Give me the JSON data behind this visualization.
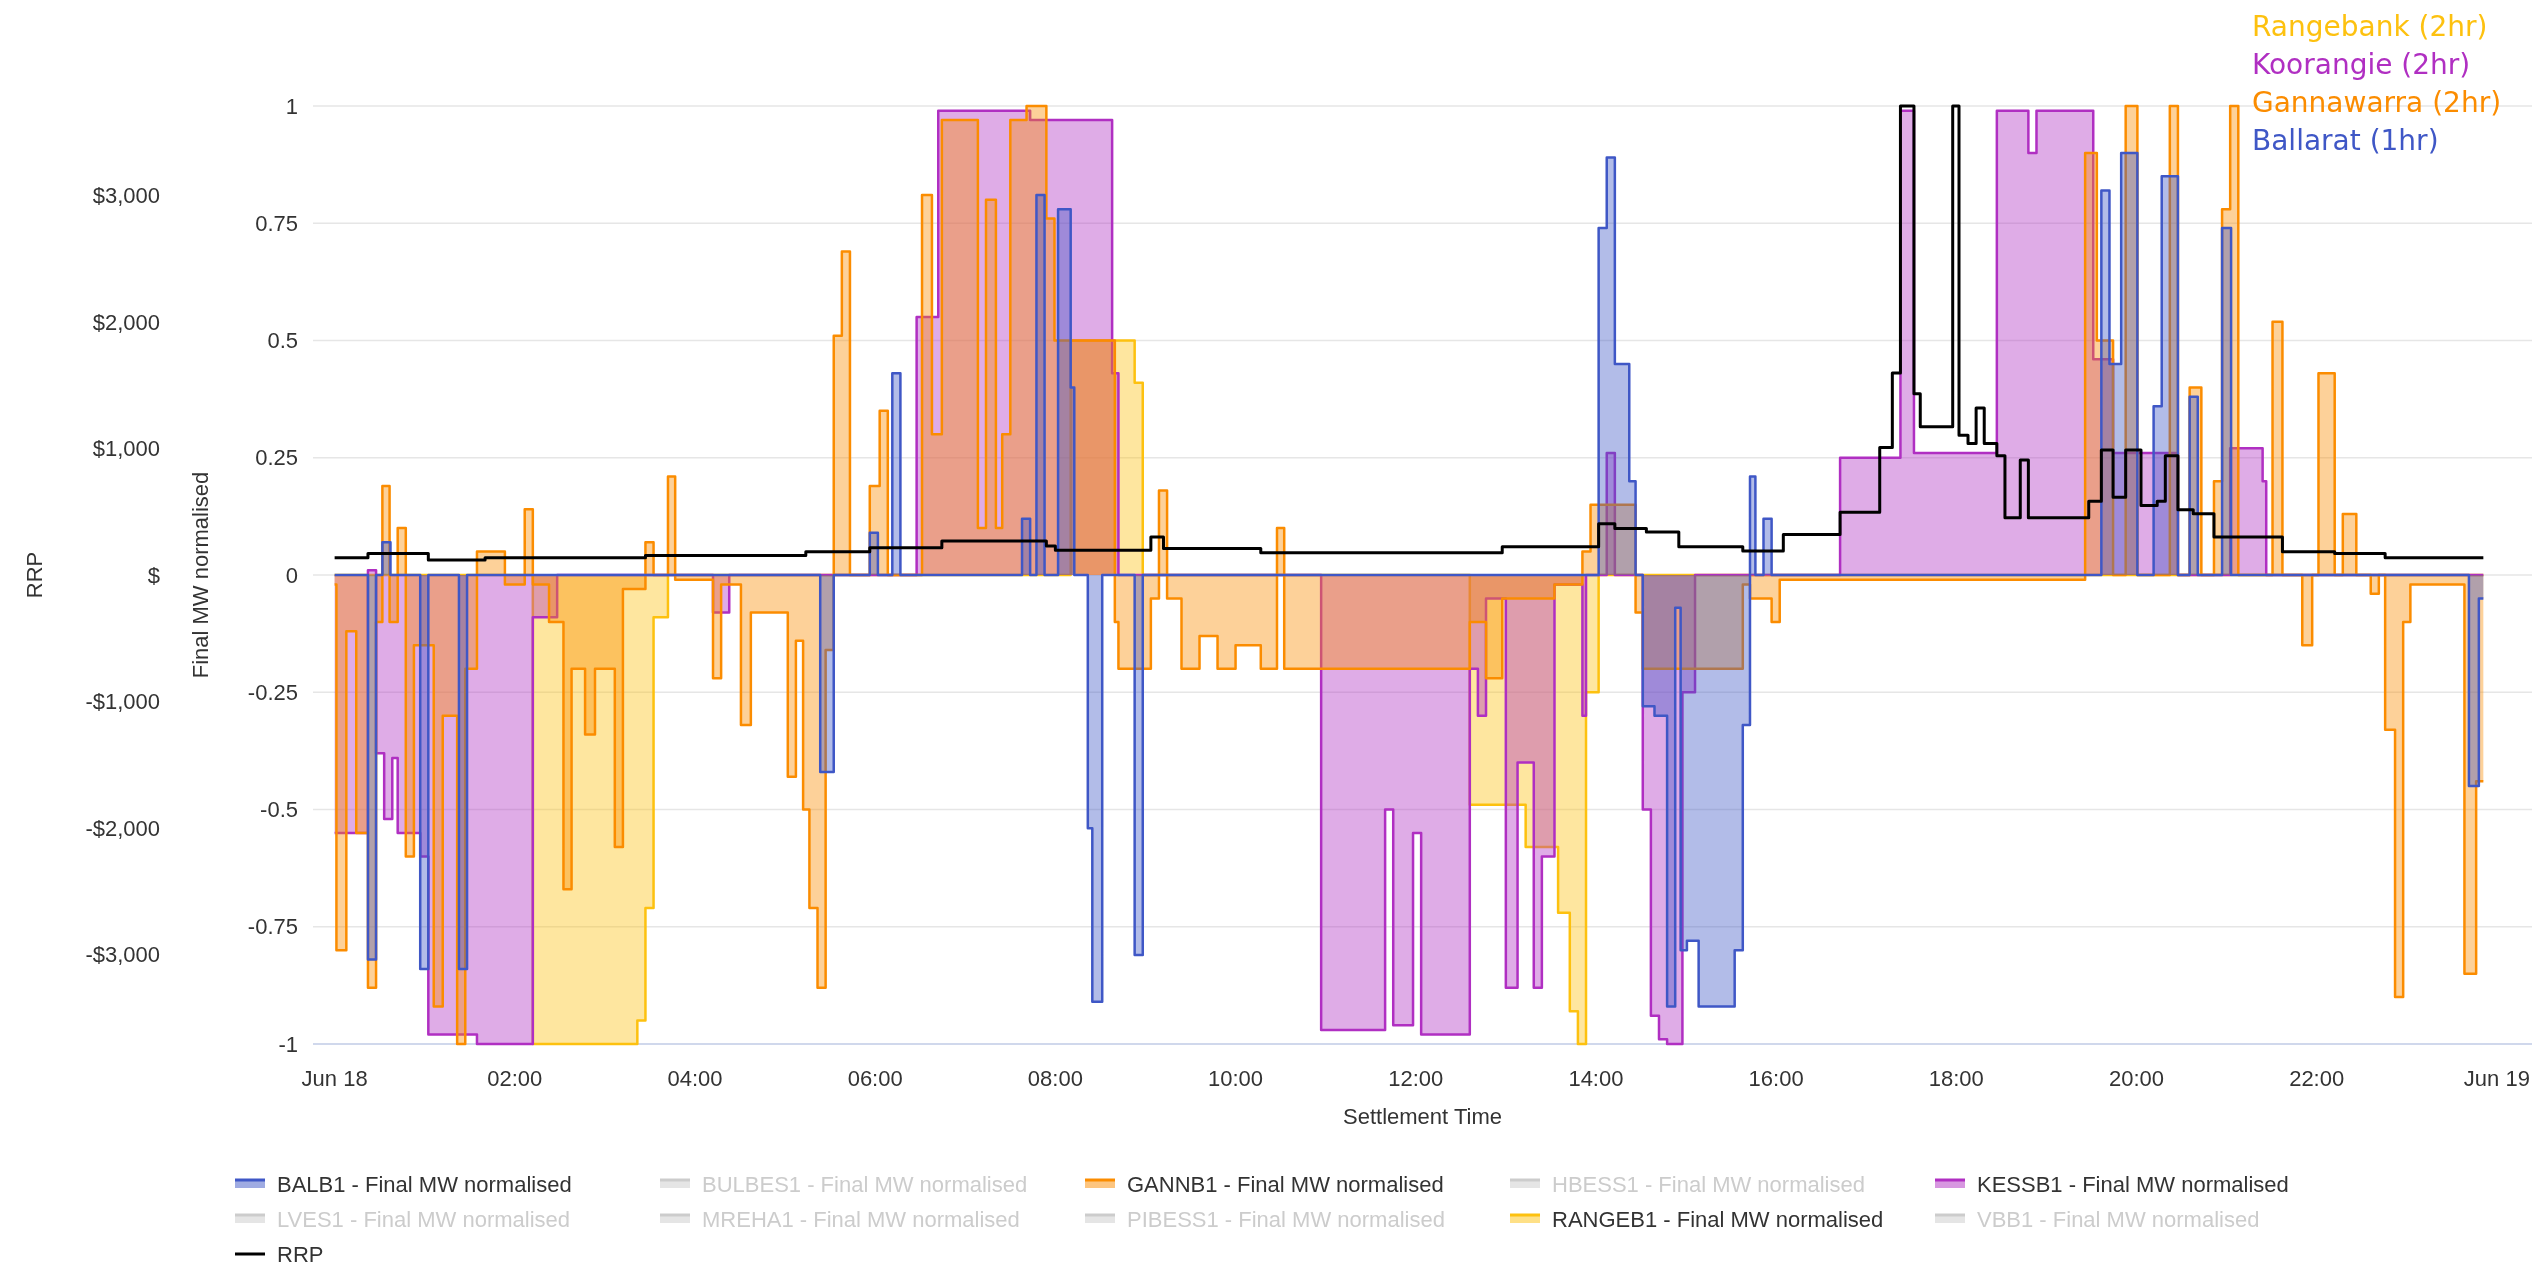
{
  "chart_data": {
    "type": "area",
    "xlabel": "Settlement Time",
    "ylabel": "Final MW normalised",
    "y2label": "RRP",
    "xlim": [
      -0.24,
      24.39
    ],
    "xticks": [
      {
        "value": 0,
        "label": "Jun 18"
      },
      {
        "value": 2,
        "label": "02:00"
      },
      {
        "value": 4,
        "label": "04:00"
      },
      {
        "value": 6,
        "label": "06:00"
      },
      {
        "value": 8,
        "label": "08:00"
      },
      {
        "value": 10,
        "label": "10:00"
      },
      {
        "value": 12,
        "label": "12:00"
      },
      {
        "value": 14,
        "label": "14:00"
      },
      {
        "value": 16,
        "label": "16:00"
      },
      {
        "value": 18,
        "label": "18:00"
      },
      {
        "value": 20,
        "label": "20:00"
      },
      {
        "value": 22,
        "label": "22:00"
      },
      {
        "value": 24,
        "label": "Jun 19"
      }
    ],
    "ylim": [
      -1,
      1
    ],
    "yticks": [
      -1,
      -0.75,
      -0.5,
      -0.25,
      0,
      0.25,
      0.5,
      0.75,
      1
    ],
    "y2lim": [
      -3710,
      3710
    ],
    "y2ticks": [
      {
        "value": -3000,
        "label": "-$3,000"
      },
      {
        "value": -2000,
        "label": "-$2,000"
      },
      {
        "value": -1000,
        "label": "-$1,000"
      },
      {
        "value": 0,
        "label": "$"
      },
      {
        "value": 1000,
        "label": "$1,000"
      },
      {
        "value": 2000,
        "label": "$2,000"
      },
      {
        "value": 3000,
        "label": "$3,000"
      }
    ],
    "grid": "y",
    "legend": "bottom",
    "annotations": [
      "Rangebank (2hr)",
      "Koorangie (2hr)",
      "Gannawarra (2hr)",
      "Ballarat (1hr)"
    ],
    "series": [
      {
        "name": "BALB1 - Final MW normalised",
        "color": "#3f57c6",
        "x": [
          0,
          0.37,
          0.46,
          0.53,
          0.62,
          0.95,
          1.04,
          1.38,
          1.47,
          5.39,
          5.54,
          5.94,
          6.03,
          6.19,
          6.28,
          7.63,
          7.72,
          7.79,
          7.88,
          8.03,
          8.17,
          8.21,
          8.36,
          8.41,
          8.52,
          8.88,
          8.97,
          14.03,
          14.12,
          14.21,
          14.37,
          14.44,
          14.52,
          14.65,
          14.79,
          14.88,
          14.94,
          15.01,
          15.14,
          15.54,
          15.63,
          15.71,
          15.77,
          15.86,
          15.95,
          19.61,
          19.7,
          19.83,
          20.01,
          20.19,
          20.28,
          20.46,
          20.59,
          20.68,
          20.95,
          21.05,
          23.69,
          23.8,
          23.85
        ],
        "values": [
          0,
          -0.82,
          0,
          0.07,
          0,
          -0.84,
          0,
          -0.84,
          0,
          -0.42,
          0,
          0.09,
          0,
          0.43,
          0,
          0.12,
          0,
          0.81,
          0,
          0.78,
          0.4,
          0,
          -0.54,
          -0.91,
          0,
          -0.81,
          0,
          0.74,
          0.89,
          0.45,
          0.2,
          0,
          -0.28,
          -0.3,
          -0.92,
          -0.07,
          -0.8,
          -0.78,
          -0.92,
          -0.8,
          -0.32,
          0.21,
          0,
          0.12,
          0,
          0.82,
          0.45,
          0.9,
          0,
          0.36,
          0.85,
          0,
          0.38,
          0,
          0.74,
          0,
          -0.45,
          -0.05,
          -0.05
        ]
      },
      {
        "name": "BULBES1 - Final MW normalised",
        "color": "#cccccc"
      },
      {
        "name": "GANNB1 - Final MW normalised",
        "color": "#fb8c00",
        "x": [
          0,
          0.02,
          0.13,
          0.24,
          0.37,
          0.46,
          0.53,
          0.61,
          0.7,
          0.79,
          0.88,
          1.1,
          1.2,
          1.36,
          1.45,
          1.58,
          1.89,
          2.11,
          2.2,
          2.38,
          2.54,
          2.63,
          2.78,
          2.89,
          3.11,
          3.2,
          3.45,
          3.54,
          3.7,
          3.78,
          4.2,
          4.29,
          4.51,
          4.62,
          5.03,
          5.12,
          5.2,
          5.27,
          5.36,
          5.45,
          5.54,
          5.63,
          5.72,
          5.94,
          6.05,
          6.14,
          6.52,
          6.63,
          6.74,
          7.14,
          7.23,
          7.34,
          7.41,
          7.5,
          7.68,
          7.9,
          7.99,
          8.66,
          8.7,
          9.06,
          9.15,
          9.24,
          9.4,
          9.6,
          9.8,
          10.0,
          10.28,
          10.46,
          10.54,
          12.6,
          12.78,
          12.96,
          13.54,
          13.85,
          13.94,
          14.44,
          14.52,
          15.63,
          15.71,
          15.95,
          16.04,
          19.43,
          19.56,
          19.74,
          19.88,
          20.01,
          20.37,
          20.46,
          20.59,
          20.72,
          20.86,
          20.95,
          21.04,
          21.13,
          21.51,
          21.62,
          21.84,
          21.95,
          22.02,
          22.2,
          22.29,
          22.44,
          22.6,
          22.69,
          22.76,
          22.87,
          22.96,
          23.04,
          23.64,
          23.77,
          23.85
        ],
        "values": [
          -0.02,
          -0.8,
          -0.12,
          -0.55,
          -0.88,
          -0.1,
          0.19,
          -0.1,
          0.1,
          -0.6,
          -0.15,
          -0.92,
          -0.3,
          -1.0,
          -0.2,
          0.05,
          -0.02,
          0.14,
          -0.02,
          -0.1,
          -0.67,
          -0.2,
          -0.34,
          -0.2,
          -0.58,
          -0.03,
          0.07,
          0,
          0.21,
          -0.01,
          -0.22,
          -0.02,
          -0.32,
          -0.08,
          -0.43,
          -0.14,
          -0.5,
          -0.71,
          -0.88,
          -0.16,
          0.51,
          0.69,
          0,
          0.19,
          0.35,
          0,
          0.81,
          0.3,
          0.97,
          0.1,
          0.8,
          0.1,
          0.3,
          0.97,
          1.0,
          0.76,
          0.5,
          -0.1,
          -0.2,
          -0.05,
          0.18,
          -0.05,
          -0.2,
          -0.13,
          -0.2,
          -0.15,
          -0.2,
          0.1,
          -0.2,
          -0.1,
          -0.22,
          -0.05,
          -0.02,
          0.05,
          0.15,
          -0.08,
          -0.2,
          -0.02,
          -0.05,
          -0.1,
          -0.01,
          0.9,
          0.5,
          0,
          1.0,
          0,
          1.0,
          0,
          0.4,
          0,
          0.2,
          0.78,
          1.0,
          0,
          0.54,
          0,
          -0.15,
          0,
          0.43,
          0,
          0.13,
          0,
          -0.04,
          0,
          -0.33,
          -0.9,
          -0.1,
          -0.02,
          -0.85,
          -0.44,
          -0.44
        ]
      },
      {
        "name": "HBESS1 - Final MW normalised",
        "color": "#cccccc"
      },
      {
        "name": "KESSB1 - Final MW normalised",
        "color": "#b02fc2",
        "x": [
          0,
          0.37,
          0.46,
          0.55,
          0.64,
          0.7,
          0.95,
          1.04,
          1.58,
          2.2,
          2.47,
          4.2,
          4.38,
          6.46,
          6.7,
          7.72,
          8.63,
          8.7,
          10.95,
          11.66,
          11.75,
          11.97,
          12.06,
          12.6,
          12.69,
          12.78,
          13.0,
          13.13,
          13.31,
          13.4,
          13.54,
          13.85,
          13.89,
          14.12,
          14.21,
          14.52,
          14.61,
          14.7,
          14.79,
          14.96,
          15.1,
          16.71,
          17.38,
          17.53,
          18.45,
          18.8,
          18.89,
          19.52,
          19.74,
          20.46,
          21.04,
          21.4,
          21.44,
          23.85
        ],
        "values": [
          -0.55,
          0.01,
          -0.38,
          -0.52,
          -0.39,
          -0.55,
          -0.6,
          -0.98,
          -1.0,
          -0.09,
          0,
          -0.08,
          0,
          0.55,
          0.99,
          0.97,
          0.43,
          0,
          -0.97,
          -0.5,
          -0.96,
          -0.55,
          -0.98,
          -0.2,
          -0.3,
          -0.05,
          -0.88,
          -0.4,
          -0.88,
          -0.6,
          -0.02,
          -0.3,
          0,
          0.26,
          0,
          -0.5,
          -0.94,
          -0.99,
          -1.0,
          -0.25,
          0,
          0.25,
          0.99,
          0.26,
          0.99,
          0.9,
          0.99,
          0.46,
          0.26,
          0,
          0.27,
          0.2,
          0,
          0
        ]
      },
      {
        "name": "LVES1 - Final MW normalised",
        "color": "#cccccc"
      },
      {
        "name": "MREHA1 - Final MW normalised",
        "color": "#cccccc"
      },
      {
        "name": "PIBESS1 - Final MW normalised",
        "color": "#cccccc"
      },
      {
        "name": "RANGEB1 - Final MW normalised",
        "color": "#fdc10f",
        "x": [
          0,
          2.2,
          3.36,
          3.45,
          3.54,
          3.7,
          8.17,
          8.88,
          8.97,
          12.6,
          13.22,
          13.58,
          13.71,
          13.8,
          13.89,
          14.03,
          23.85
        ],
        "values": [
          0,
          -1.0,
          -0.95,
          -0.71,
          -0.09,
          0,
          0.5,
          0.41,
          0,
          -0.49,
          -0.58,
          -0.72,
          -0.93,
          -1.0,
          -0.25,
          0,
          0
        ]
      },
      {
        "name": "VBB1 - Final MW normalised",
        "color": "#cccccc"
      },
      {
        "name": "RRP",
        "type": "step",
        "axis": "y2",
        "color": "#000000",
        "x": [
          0,
          0.37,
          1.04,
          1.67,
          3.45,
          5.23,
          5.94,
          6.74,
          7.9,
          8.0,
          9.06,
          9.2,
          10.28,
          12.96,
          14.03,
          14.21,
          14.56,
          14.92,
          15.63,
          16.08,
          16.71,
          17.15,
          17.29,
          17.38,
          17.53,
          17.6,
          17.96,
          18.03,
          18.13,
          18.22,
          18.31,
          18.45,
          18.54,
          18.71,
          18.8,
          19.47,
          19.61,
          19.74,
          19.88,
          20.05,
          20.23,
          20.32,
          20.46,
          20.63,
          20.86,
          21.62,
          22.2,
          22.76,
          23.85
        ],
        "values": [
          137,
          170,
          118,
          137,
          155,
          183,
          216,
          268,
          230,
          196,
          300,
          209,
          177,
          223,
          406,
          367,
          340,
          223,
          190,
          321,
          497,
          1008,
          1597,
          3710,
          1434,
          1172,
          3710,
          1106,
          1040,
          1322,
          1040,
          943,
          452,
          910,
          452,
          583,
          988,
          615,
          988,
          550,
          583,
          943,
          517,
          485,
          301,
          183,
          170,
          137,
          137
        ]
      }
    ]
  }
}
